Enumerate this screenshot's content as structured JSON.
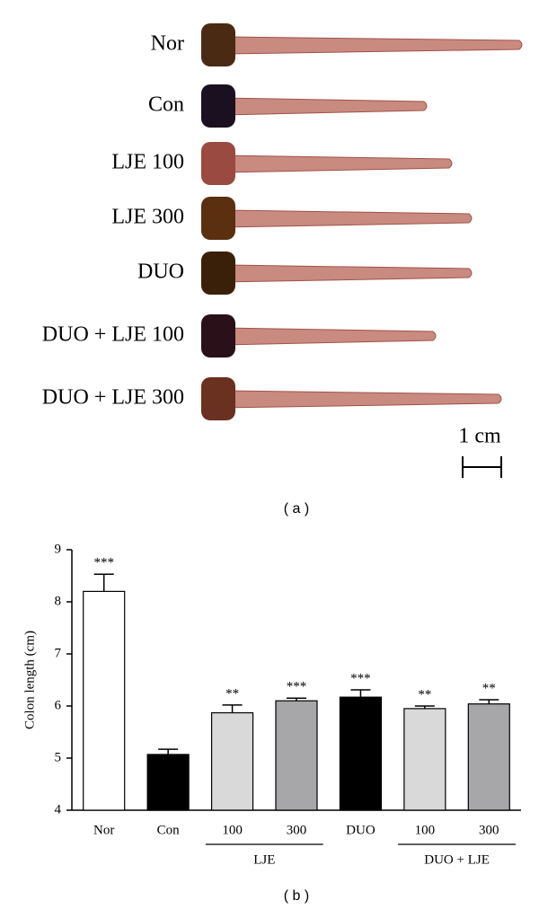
{
  "photo_panel": {
    "labels": [
      "Nor",
      "Con",
      "LJE 100",
      "LJE 300",
      "DUO",
      "DUO + LJE 100",
      "DUO + LJE 300"
    ],
    "scale_label": "1 cm",
    "panel_label": "( a )"
  },
  "chart_data": {
    "type": "bar",
    "panel_label": "( b )",
    "ylabel": "Colon length (cm)",
    "categories": [
      "Nor",
      "Con",
      "100",
      "300",
      "DUO",
      "100",
      "300"
    ],
    "values": [
      8.2,
      5.07,
      5.87,
      6.1,
      6.17,
      5.95,
      6.04
    ],
    "errors": [
      0.33,
      0.1,
      0.15,
      0.05,
      0.14,
      0.05,
      0.08
    ],
    "value_labels": [
      "***",
      null,
      "**",
      "***",
      "***",
      "**",
      "**"
    ],
    "colors": [
      "#ffffff",
      "#000000",
      "#d9d9d9",
      "#a7a7aa",
      "#000000",
      "#d9d9d9",
      "#a7a7aa"
    ],
    "group_labels": [
      "LJE",
      "DUO + LJE"
    ],
    "ylim": [
      4,
      9
    ],
    "yticks": [
      4,
      5,
      6,
      7,
      8,
      9
    ]
  }
}
